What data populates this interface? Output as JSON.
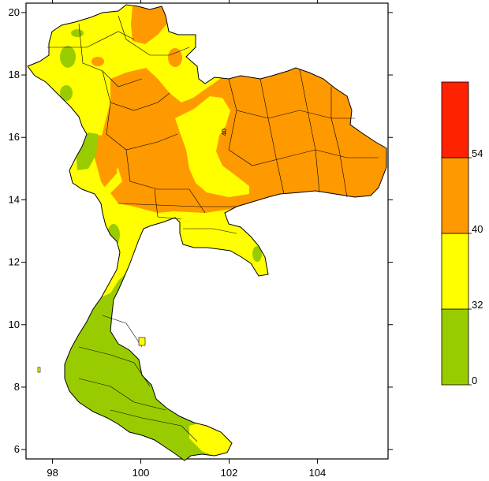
{
  "chart_data": {
    "type": "contour_map",
    "title": "",
    "xlabel": "",
    "ylabel": "",
    "xlim": [
      97.4,
      105.6
    ],
    "ylim": [
      5.7,
      20.3
    ],
    "x_ticks": [
      {
        "value": 98,
        "label": "98"
      },
      {
        "value": 100,
        "label": "100"
      },
      {
        "value": 102,
        "label": "102"
      },
      {
        "value": 104,
        "label": "104"
      }
    ],
    "y_ticks": [
      {
        "value": 6,
        "label": "6"
      },
      {
        "value": 8,
        "label": "8"
      },
      {
        "value": 10,
        "label": "10"
      },
      {
        "value": 12,
        "label": "12"
      },
      {
        "value": 14,
        "label": "14"
      },
      {
        "value": 16,
        "label": "16"
      },
      {
        "value": 18,
        "label": "18"
      },
      {
        "value": 20,
        "label": "20"
      }
    ],
    "legend": {
      "placement": "right",
      "levels": [
        {
          "from": 0,
          "to": 32,
          "color": "#99cc00"
        },
        {
          "from": 32,
          "to": 40,
          "color": "#ffff00"
        },
        {
          "from": 40,
          "to": 54,
          "color": "#ff9900"
        },
        {
          "from": 54,
          "to": null,
          "color": "#ff2200"
        }
      ],
      "boundary_labels": [
        "0",
        "32",
        "40",
        "54"
      ]
    },
    "contour_labels": [
      "40"
    ],
    "grid": false
  }
}
